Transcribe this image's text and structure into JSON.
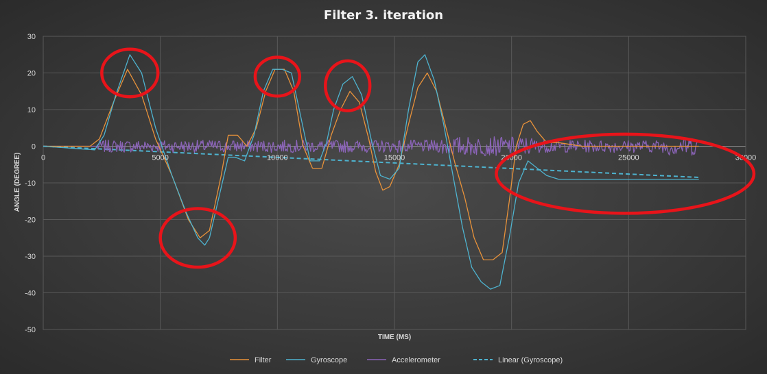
{
  "chart_data": {
    "type": "line",
    "title": "Filter  3. iteration",
    "xlabel": "TIME (MS)",
    "ylabel": "ANGLE (DEGREE)",
    "xlim": [
      0,
      30000
    ],
    "ylim": [
      -50,
      30
    ],
    "xticks": [
      0,
      5000,
      10000,
      15000,
      20000,
      25000,
      30000
    ],
    "yticks": [
      30,
      20,
      10,
      0,
      -10,
      -20,
      -30,
      -40,
      -50
    ],
    "grid": true,
    "legend_position": "bottom",
    "series": [
      {
        "name": "Filter",
        "color": "#e8923a",
        "style": "solid",
        "x": [
          0,
          2000,
          2400,
          3000,
          3600,
          4200,
          4800,
          5500,
          6200,
          6700,
          7100,
          7600,
          7900,
          8300,
          8700,
          9100,
          9500,
          9900,
          10300,
          10700,
          11100,
          11500,
          11900,
          12300,
          12700,
          13100,
          13500,
          13900,
          14200,
          14500,
          14800,
          15200,
          15600,
          16000,
          16400,
          16800,
          17200,
          17600,
          18000,
          18400,
          18800,
          19200,
          19600,
          19900,
          20200,
          20500,
          20800,
          21100,
          21500,
          22000,
          23000,
          25000,
          28000
        ],
        "y": [
          0,
          0,
          2,
          12,
          21,
          14,
          2,
          -8,
          -20,
          -25,
          -23,
          -8,
          3,
          3,
          0,
          5,
          15,
          21,
          21,
          15,
          0,
          -6,
          -6,
          3,
          10,
          15,
          12,
          2,
          -7,
          -12,
          -11,
          -5,
          6,
          16,
          20,
          15,
          5,
          -5,
          -14,
          -25,
          -31,
          -31,
          -29,
          -15,
          0,
          6,
          7,
          4,
          1,
          1,
          0,
          0,
          0
        ]
      },
      {
        "name": "Gyroscope",
        "color": "#4eb3cf",
        "style": "solid",
        "x": [
          0,
          2200,
          2600,
          3100,
          3700,
          4200,
          4800,
          5500,
          6100,
          6600,
          6900,
          7100,
          7500,
          7900,
          8200,
          8600,
          9000,
          9400,
          9800,
          10200,
          10600,
          11000,
          11400,
          11800,
          12100,
          12400,
          12800,
          13200,
          13600,
          14000,
          14400,
          14800,
          15200,
          15600,
          16000,
          16300,
          16700,
          17100,
          17500,
          17900,
          18300,
          18700,
          19100,
          19500,
          19900,
          20300,
          20700,
          21100,
          21500,
          22000,
          23000,
          24000,
          25000,
          26000,
          28000
        ],
        "y": [
          0,
          -1,
          3,
          14,
          25,
          20,
          5,
          -8,
          -18,
          -25,
          -27,
          -25,
          -14,
          -3,
          -3,
          -4,
          3,
          15,
          21,
          21,
          20,
          8,
          -4,
          -4,
          1,
          10,
          17,
          19,
          14,
          2,
          -8,
          -9,
          -6,
          10,
          23,
          25,
          18,
          6,
          -8,
          -22,
          -33,
          -37,
          -39,
          -38,
          -25,
          -10,
          -4,
          -6,
          -8,
          -9,
          -9,
          -9,
          -9,
          -9,
          -9
        ]
      },
      {
        "name": "Accelerometer",
        "color": "#8b64b8",
        "style": "solid",
        "x": [
          0,
          2300,
          28000
        ],
        "y": [
          0,
          0,
          0
        ]
      },
      {
        "name": "Linear (Gyroscope)",
        "color": "#4eb3cf",
        "style": "dashed",
        "x": [
          0,
          28000
        ],
        "y": [
          0,
          -8.5
        ]
      }
    ],
    "annotations": [
      {
        "shape": "ellipse",
        "color": "#e8141a",
        "cx": 3700,
        "cy": 20,
        "rx": 1200,
        "ry": 6.5
      },
      {
        "shape": "ellipse",
        "color": "#e8141a",
        "cx": 6600,
        "cy": -25,
        "rx": 1600,
        "ry": 8
      },
      {
        "shape": "ellipse",
        "color": "#e8141a",
        "cx": 10000,
        "cy": 19,
        "rx": 950,
        "ry": 5.3
      },
      {
        "shape": "ellipse",
        "color": "#e8141a",
        "cx": 13000,
        "cy": 16.5,
        "rx": 950,
        "ry": 6.8
      },
      {
        "shape": "ellipse",
        "color": "#e8141a",
        "cx": 24850,
        "cy": -7.5,
        "rx": 5500,
        "ry": 10.8
      }
    ]
  }
}
